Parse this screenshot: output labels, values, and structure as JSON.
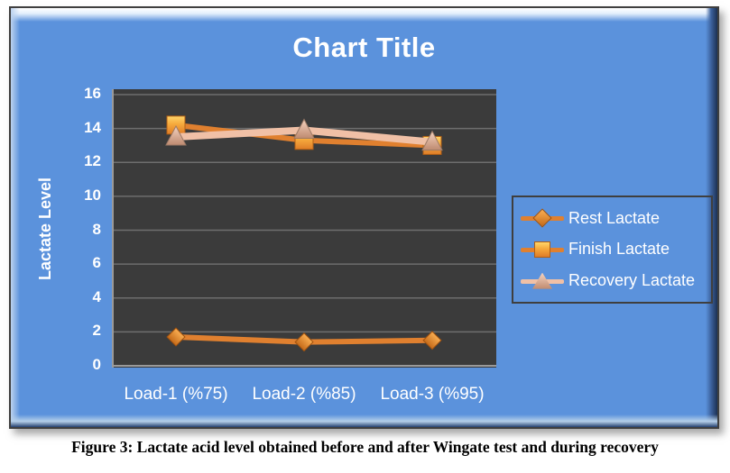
{
  "figure_caption": "Figure 3: Lactate acid level obtained before and after Wingate test and during recovery",
  "colors": {
    "background": "#5B92DC",
    "plot_background": "#3B3B3B",
    "gridline": "#6E6E6E",
    "axis_line": "#9A9A9A",
    "text": "#FFFFFF",
    "orange_series": "#E0802F",
    "pink_series": "#F0C0A6"
  },
  "chart_data": {
    "type": "line",
    "title": "Chart Title",
    "xlabel": "",
    "ylabel": "Lactate Level",
    "categories": [
      "Load-1 (%75)",
      "Load-2 (%85)",
      "Load-3 (%95)"
    ],
    "series": [
      {
        "name": "Rest Lactate",
        "values": [
          1.7,
          1.4,
          1.5
        ],
        "marker": "diamond",
        "line_color": "#E0802F",
        "marker_icon": "diamond-marker-icon"
      },
      {
        "name": "Finish Lactate",
        "values": [
          14.2,
          13.3,
          13.0
        ],
        "marker": "square",
        "line_color": "#E0802F",
        "marker_icon": "square-marker-icon"
      },
      {
        "name": "Recovery Lactate",
        "values": [
          13.5,
          13.9,
          13.2
        ],
        "marker": "triangle",
        "line_color": "#F0C0A6",
        "marker_icon": "triangle-marker-icon"
      }
    ],
    "ylim": [
      0,
      16
    ],
    "y_ticks": [
      0,
      2,
      4,
      6,
      8,
      10,
      12,
      14,
      16
    ],
    "grid": true,
    "legend_position": "right",
    "legend_labels": [
      "Rest Lactate",
      "Finish Lactate",
      "Recovery Lactate"
    ]
  }
}
